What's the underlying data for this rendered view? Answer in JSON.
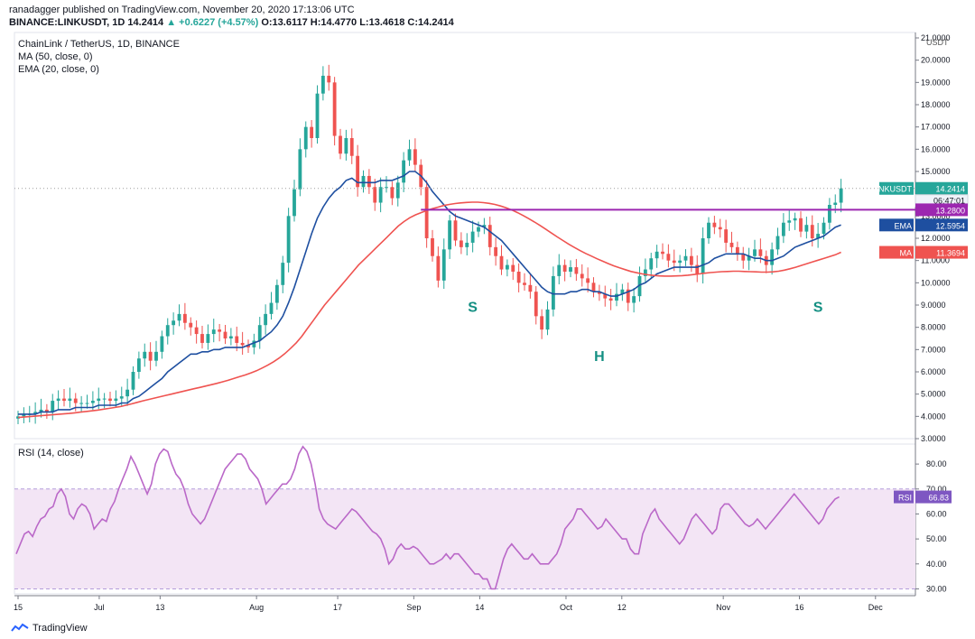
{
  "header": {
    "published": "ranadagger published on TradingView.com, November 20, 2020 17:13:06 UTC",
    "symbol": "BINANCE:LINKUSDT, 1D",
    "last": "14.2414",
    "change": "▲ +0.6227 (+4.57%)",
    "o_label": "O:",
    "o": "13.6117",
    "h_label": "H:",
    "h": "14.4770",
    "l_label": "L:",
    "l": "13.4618",
    "c_label": "C:",
    "c": "14.2414"
  },
  "legend": {
    "title": "ChainLink / TetherUS, 1D, BINANCE",
    "ma": "MA (50, close, 0)",
    "ema": "EMA (20, close, 0)"
  },
  "rsi_legend": "RSI (14, close)",
  "footer": {
    "brand": "TradingView"
  },
  "colors": {
    "up": "#26a69a",
    "down": "#ef5350",
    "ema": "#1e4fa0",
    "ma": "#ef5350",
    "resistance": "#9c27b0",
    "rsi": "#ba68c8",
    "rsi_band": "#f3e5f5",
    "pattern": "#138f82"
  },
  "chart_data": [
    {
      "type": "candlestick",
      "title": "ChainLink / TetherUS, 1D, BINANCE",
      "currency": "USDT",
      "y_ticks": [
        "3.0000",
        "4.0000",
        "5.0000",
        "6.0000",
        "7.0000",
        "8.0000",
        "9.0000",
        "10.0000",
        "11.0000",
        "12.0000",
        "13.0000",
        "14.0000",
        "15.0000",
        "16.0000",
        "17.0000",
        "18.0000",
        "19.0000",
        "20.0000",
        "21.0000"
      ],
      "ylim": [
        3,
        21
      ],
      "x_ticks": [
        {
          "label": "15",
          "day": 0
        },
        {
          "label": "Jul",
          "day": 16
        },
        {
          "label": "13",
          "day": 28
        },
        {
          "label": "Aug",
          "day": 47
        },
        {
          "label": "17",
          "day": 63
        },
        {
          "label": "Sep",
          "day": 78
        },
        {
          "label": "14",
          "day": 91
        },
        {
          "label": "Oct",
          "day": 108
        },
        {
          "label": "12",
          "day": 119
        },
        {
          "label": "Nov",
          "day": 139
        },
        {
          "label": "16",
          "day": 154
        },
        {
          "label": "Dec",
          "day": 169
        }
      ],
      "close": [
        4.0,
        4.1,
        4.1,
        4.2,
        4.3,
        4.2,
        4.7,
        4.8,
        4.7,
        4.8,
        4.6,
        4.6,
        4.6,
        4.7,
        4.8,
        4.8,
        4.7,
        4.8,
        4.9,
        5.2,
        6.0,
        6.6,
        6.9,
        6.5,
        6.9,
        7.6,
        8.1,
        8.3,
        8.6,
        8.2,
        8.0,
        7.7,
        7.3,
        7.7,
        7.9,
        7.8,
        7.5,
        7.6,
        7.3,
        7.2,
        7.1,
        7.4,
        8.1,
        8.6,
        9.1,
        9.9,
        10.9,
        13.0,
        14.2,
        16.0,
        17.0,
        16.5,
        18.5,
        19.3,
        19.0,
        16.6,
        15.8,
        16.5,
        15.7,
        14.3,
        14.8,
        14.3,
        13.6,
        14.3,
        14.3,
        13.8,
        14.5,
        15.5,
        16.0,
        15.3,
        14.3,
        12.0,
        11.2,
        10.1,
        11.5,
        12.8,
        11.9,
        11.6,
        11.8,
        12.3,
        12.5,
        12.6,
        11.6,
        11.2,
        10.6,
        10.8,
        10.5,
        10.0,
        9.9,
        9.6,
        8.5,
        7.9,
        8.8,
        10.3,
        10.8,
        10.5,
        10.7,
        10.4,
        10.2,
        10.0,
        9.6,
        9.5,
        9.3,
        9.2,
        9.5,
        9.7,
        9.1,
        9.4,
        10.3,
        10.6,
        11.1,
        11.4,
        11.3,
        11.0,
        10.9,
        11.0,
        11.2,
        10.8,
        10.4,
        12.0,
        12.7,
        12.5,
        12.4,
        11.8,
        11.6,
        11.3,
        11.0,
        11.2,
        11.5,
        11.2,
        10.8,
        11.5,
        12.1,
        12.7,
        12.8,
        12.9,
        12.3,
        12.6,
        12.0,
        12.2,
        12.7,
        13.5,
        13.6,
        14.24
      ],
      "ema": [
        4.1,
        4.1,
        4.1,
        4.1,
        4.2,
        4.2,
        4.2,
        4.3,
        4.3,
        4.3,
        4.4,
        4.4,
        4.4,
        4.4,
        4.5,
        4.5,
        4.5,
        4.5,
        4.6,
        4.6,
        4.8,
        4.9,
        5.1,
        5.3,
        5.5,
        5.7,
        6.0,
        6.2,
        6.4,
        6.6,
        6.8,
        6.8,
        6.9,
        6.9,
        7.0,
        7.0,
        7.1,
        7.1,
        7.1,
        7.1,
        7.2,
        7.3,
        7.4,
        7.6,
        7.8,
        8.1,
        8.5,
        9.1,
        9.8,
        10.6,
        11.4,
        12.2,
        12.9,
        13.4,
        13.8,
        14.1,
        14.3,
        14.6,
        14.7,
        14.5,
        14.5,
        14.5,
        14.5,
        14.6,
        14.6,
        14.6,
        14.7,
        14.8,
        15.0,
        15.0,
        14.8,
        14.5,
        14.1,
        13.8,
        13.5,
        13.2,
        13.0,
        12.9,
        12.8,
        12.7,
        12.6,
        12.5,
        12.3,
        12.1,
        11.9,
        11.6,
        11.3,
        11.0,
        10.7,
        10.4,
        10.1,
        9.8,
        9.6,
        9.5,
        9.5,
        9.5,
        9.6,
        9.6,
        9.7,
        9.7,
        9.6,
        9.6,
        9.5,
        9.4,
        9.4,
        9.5,
        9.6,
        9.7,
        9.9,
        10.0,
        10.2,
        10.4,
        10.5,
        10.6,
        10.7,
        10.7,
        10.7,
        10.7,
        10.7,
        10.8,
        10.9,
        11.1,
        11.2,
        11.3,
        11.3,
        11.3,
        11.3,
        11.2,
        11.1,
        11.1,
        11.0,
        11.0,
        11.1,
        11.2,
        11.4,
        11.6,
        11.7,
        11.8,
        11.9,
        12.0,
        12.1,
        12.3,
        12.5,
        12.6
      ],
      "ma": [
        3.95,
        3.97,
        3.99,
        4.01,
        4.03,
        4.05,
        4.07,
        4.09,
        4.11,
        4.13,
        4.16,
        4.19,
        4.22,
        4.25,
        4.28,
        4.32,
        4.36,
        4.4,
        4.44,
        4.5,
        4.56,
        4.63,
        4.7,
        4.76,
        4.82,
        4.88,
        4.94,
        5.0,
        5.06,
        5.12,
        5.18,
        5.24,
        5.3,
        5.36,
        5.42,
        5.48,
        5.55,
        5.62,
        5.7,
        5.78,
        5.86,
        5.95,
        6.05,
        6.17,
        6.3,
        6.45,
        6.62,
        6.82,
        7.05,
        7.3,
        7.6,
        7.95,
        8.3,
        8.65,
        9.0,
        9.3,
        9.6,
        9.9,
        10.2,
        10.5,
        10.8,
        11.05,
        11.3,
        11.55,
        11.8,
        12.05,
        12.3,
        12.55,
        12.75,
        12.92,
        13.05,
        13.15,
        13.25,
        13.33,
        13.4,
        13.47,
        13.52,
        13.56,
        13.59,
        13.61,
        13.62,
        13.62,
        13.6,
        13.57,
        13.52,
        13.45,
        13.37,
        13.27,
        13.15,
        13.02,
        12.88,
        12.73,
        12.57,
        12.4,
        12.23,
        12.06,
        11.9,
        11.74,
        11.59,
        11.45,
        11.32,
        11.2,
        11.08,
        10.97,
        10.86,
        10.76,
        10.67,
        10.59,
        10.51,
        10.45,
        10.4,
        10.36,
        10.33,
        10.31,
        10.3,
        10.3,
        10.31,
        10.32,
        10.34,
        10.37,
        10.4,
        10.43,
        10.46,
        10.48,
        10.5,
        10.51,
        10.52,
        10.52,
        10.51,
        10.5,
        10.49,
        10.48,
        10.48,
        10.49,
        10.52,
        10.57,
        10.63,
        10.7,
        10.78,
        10.86,
        10.94,
        11.02,
        11.1,
        11.18,
        11.26,
        11.37
      ],
      "resistance": 13.28,
      "price_labels": [
        {
          "name": "LINKUSDT",
          "value": "14.2414",
          "sub": "06:47:01"
        },
        {
          "name": "",
          "value": "13.2800"
        },
        {
          "name": "EMA",
          "value": "12.5954"
        },
        {
          "name": "MA",
          "value": "11.3694"
        }
      ],
      "annotations": [
        {
          "text": "S",
          "day": 82,
          "price": 9.1
        },
        {
          "text": "H",
          "day": 102,
          "price": 6.9
        },
        {
          "text": "S",
          "day": 141,
          "price": 9.1
        }
      ]
    },
    {
      "type": "line",
      "title": "RSI (14, close)",
      "ylim": [
        28,
        88
      ],
      "y_ticks": [
        "30.00",
        "40.00",
        "50.00",
        "60.00",
        "70.00",
        "80.00"
      ],
      "band": [
        30,
        70
      ],
      "last_label": {
        "name": "RSI",
        "value": "66.83"
      },
      "values": [
        44,
        48,
        52,
        53,
        51,
        55,
        58,
        59,
        62,
        63,
        68,
        70,
        67,
        60,
        58,
        62,
        64,
        63,
        60,
        54,
        56,
        58,
        57,
        62,
        65,
        70,
        74,
        78,
        83,
        80,
        76,
        72,
        68,
        72,
        80,
        84,
        86,
        85,
        80,
        76,
        74,
        70,
        64,
        60,
        58,
        56,
        58,
        62,
        66,
        70,
        74,
        78,
        80,
        82,
        84,
        84,
        82,
        78,
        76,
        74,
        70,
        64,
        66,
        68,
        70,
        72,
        72,
        74,
        78,
        84,
        87,
        85,
        80,
        72,
        62,
        58,
        56,
        55,
        54,
        56,
        58,
        60,
        62,
        61,
        59,
        57,
        55,
        53,
        52,
        50,
        46,
        40,
        42,
        46,
        48,
        46,
        46,
        47,
        46,
        44,
        42,
        40,
        40,
        41,
        42,
        44,
        42,
        44,
        44,
        42,
        40,
        38,
        36,
        36,
        34,
        34,
        30,
        30,
        36,
        42,
        46,
        48,
        46,
        44,
        42,
        42,
        44,
        42,
        40,
        40,
        40,
        42,
        44,
        48,
        54,
        56,
        58,
        62,
        62,
        60,
        58,
        56,
        54,
        55,
        58,
        56,
        54,
        52,
        50,
        50,
        46,
        44,
        44,
        52,
        56,
        60,
        62,
        58,
        56,
        54,
        52,
        50,
        48,
        50,
        54,
        58,
        60,
        58,
        56,
        54,
        52,
        54,
        62,
        64,
        64,
        62,
        60,
        58,
        56,
        55,
        56,
        58,
        56,
        54,
        56,
        58,
        60,
        62,
        64,
        66,
        68,
        66,
        64,
        62,
        60,
        58,
        56,
        58,
        62,
        64,
        66,
        66.83
      ]
    }
  ]
}
